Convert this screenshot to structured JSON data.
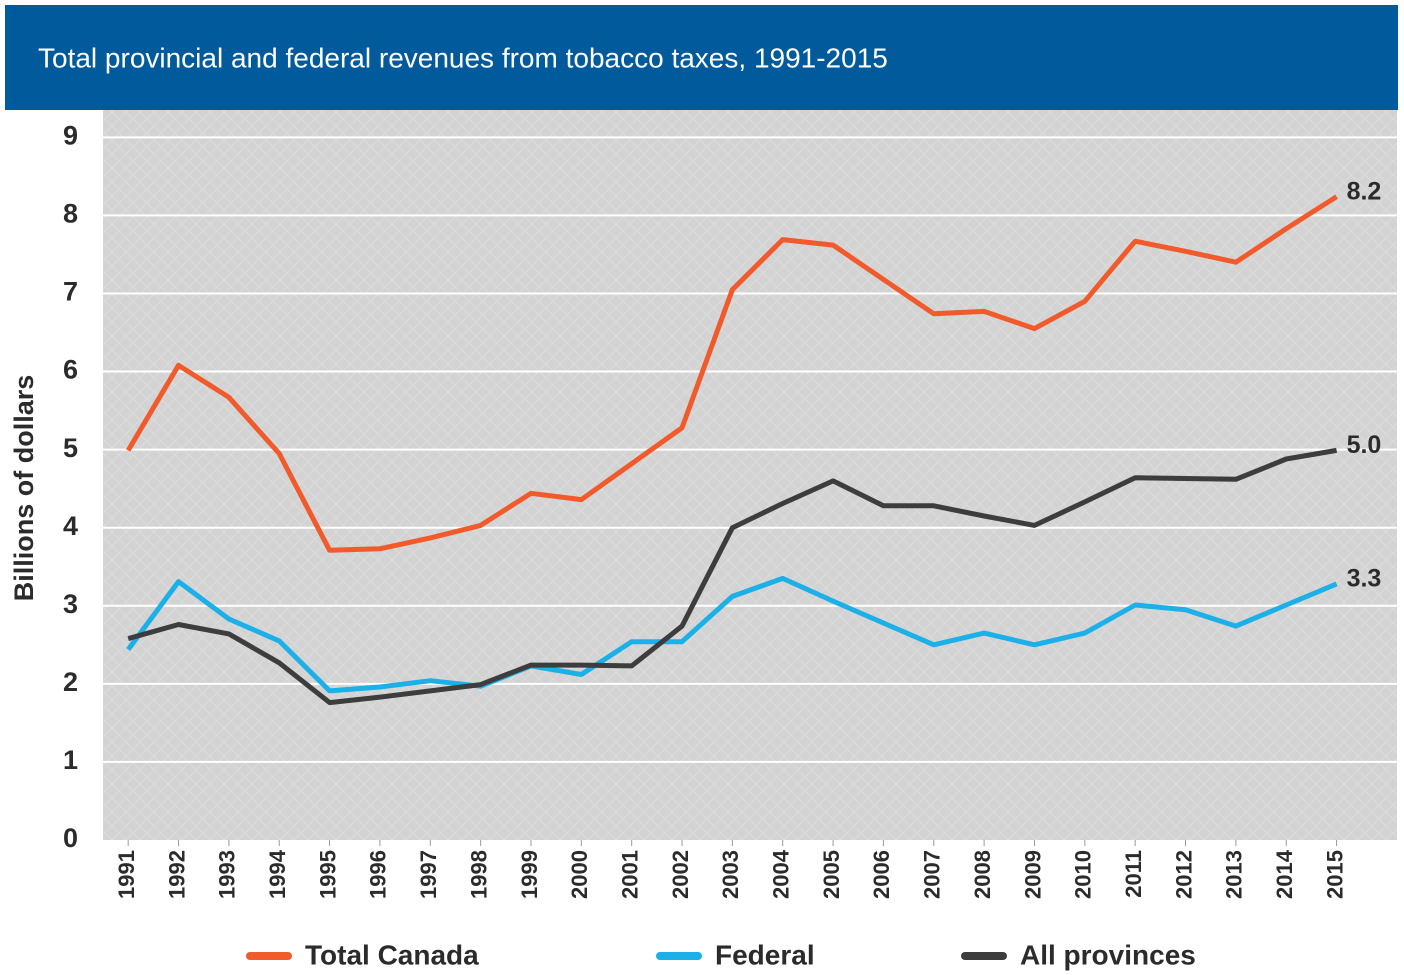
{
  "chart_data": {
    "type": "line",
    "title": "Total provincial and federal revenues from tobacco taxes, 1991-2015",
    "y_label": "Billions of dollars",
    "x": [
      1991,
      1992,
      1993,
      1994,
      1995,
      1996,
      1997,
      1998,
      1999,
      2000,
      2001,
      2002,
      2003,
      2004,
      2005,
      2006,
      2007,
      2008,
      2009,
      2010,
      2011,
      2012,
      2013,
      2014,
      2015
    ],
    "xlim": [
      1990.5,
      2016.2
    ],
    "xticks": [
      1991,
      1992,
      1993,
      1994,
      1995,
      1996,
      1997,
      1998,
      1999,
      2000,
      2001,
      2002,
      2003,
      2004,
      2005,
      2006,
      2007,
      2008,
      2009,
      2010,
      2011,
      2012,
      2013,
      2014,
      2015
    ],
    "ylim": [
      0,
      9.35
    ],
    "yticks": [
      0,
      1,
      2,
      3,
      4,
      5,
      6,
      7,
      8,
      9
    ],
    "grid": true,
    "legend": "bottom",
    "series": [
      {
        "name": "Total Canada",
        "color": "#f15a2b",
        "values": [
          4.99,
          6.08,
          5.67,
          4.95,
          3.71,
          3.73,
          3.87,
          4.03,
          4.44,
          4.36,
          4.82,
          5.28,
          7.05,
          7.69,
          7.62,
          7.18,
          6.74,
          6.77,
          6.55,
          6.9,
          7.67,
          7.54,
          7.4,
          7.83,
          8.24
        ],
        "value_labels": [
          null,
          null,
          null,
          null,
          null,
          null,
          null,
          null,
          null,
          null,
          null,
          null,
          null,
          null,
          null,
          null,
          null,
          null,
          null,
          null,
          null,
          null,
          null,
          null,
          "8.2"
        ]
      },
      {
        "name": "Federal",
        "color": "#1cb0e8",
        "values": [
          2.44,
          3.31,
          2.83,
          2.55,
          1.91,
          1.96,
          2.04,
          1.97,
          2.23,
          2.12,
          2.54,
          2.54,
          3.12,
          3.35,
          3.06,
          2.78,
          2.5,
          2.65,
          2.5,
          2.65,
          3.01,
          2.95,
          2.74,
          3.01,
          3.28
        ],
        "value_labels": [
          null,
          null,
          null,
          null,
          null,
          null,
          null,
          null,
          null,
          null,
          null,
          null,
          null,
          null,
          null,
          null,
          null,
          null,
          null,
          null,
          null,
          null,
          null,
          null,
          "3.3"
        ]
      },
      {
        "name": "All provinces",
        "color": "#3d3d3d",
        "values": [
          2.58,
          2.76,
          2.64,
          2.27,
          1.76,
          1.83,
          1.91,
          1.99,
          2.24,
          2.24,
          2.23,
          2.74,
          4.0,
          4.31,
          4.6,
          4.28,
          4.28,
          4.15,
          4.03,
          4.33,
          4.64,
          4.63,
          4.62,
          4.88,
          4.99
        ],
        "value_labels": [
          null,
          null,
          null,
          null,
          null,
          null,
          null,
          null,
          null,
          null,
          null,
          null,
          null,
          null,
          null,
          null,
          null,
          null,
          null,
          null,
          null,
          null,
          null,
          null,
          "5.0"
        ]
      }
    ]
  }
}
